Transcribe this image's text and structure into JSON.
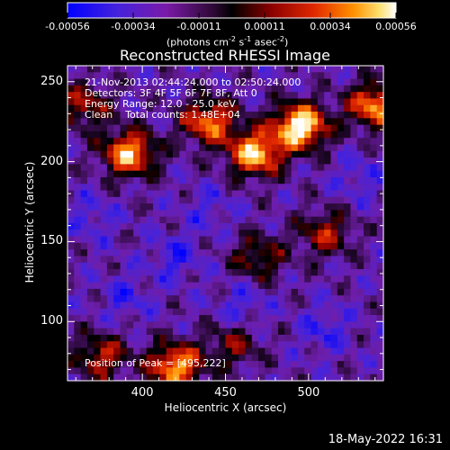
{
  "colorbar": {
    "ticks": [
      "-0.00056",
      "-0.00034",
      "-0.00011",
      "0.00011",
      "0.00034",
      "0.00056"
    ],
    "unit_text": "(photons cm",
    "unit_sup1": "-2",
    "unit_mid": " s",
    "unit_sup2": "-1",
    "unit_end": " asec",
    "unit_sup3": "-2",
    "unit_close": ")"
  },
  "title": "Reconstructed RHESSI Image",
  "info": {
    "line1": "21-Nov-2013 02:44:24.000 to 02:50:24.000",
    "line2": "Detectors: 3F 4F 5F 6F 7F 8F, Att 0",
    "line3": "Energy Range: 12.0 - 25.0 keV",
    "line4": "Clean    Total counts: 1.48E+04",
    "peak": "Position of Peak = [495,222]"
  },
  "footer": "18-May-2022 16:31",
  "chart_data": {
    "type": "heatmap",
    "title": "Reconstructed RHESSI Image",
    "xlabel": "Heliocentric X (arcsec)",
    "ylabel": "Heliocentric Y (arcsec)",
    "xlim": [
      355,
      545
    ],
    "ylim": [
      63,
      260
    ],
    "xticks": [
      400,
      450,
      500
    ],
    "yticks": [
      100,
      150,
      200,
      250
    ],
    "colorscale_range": [
      -0.00056,
      0.00056
    ],
    "colormap": [
      "#0000ff",
      "#6633cc",
      "#7a1aa8",
      "#3a0a4a",
      "#000000",
      "#7a0000",
      "#d21e00",
      "#ff6a00",
      "#ffc040",
      "#ffffff"
    ],
    "peak_position": [
      495,
      222
    ],
    "hot_regions": [
      {
        "x": 495,
        "y": 222,
        "intensity": 1.0
      },
      {
        "x": 468,
        "y": 205,
        "intensity": 0.85
      },
      {
        "x": 440,
        "y": 225,
        "intensity": 0.7
      },
      {
        "x": 392,
        "y": 205,
        "intensity": 0.8
      },
      {
        "x": 540,
        "y": 235,
        "intensity": 0.75
      },
      {
        "x": 420,
        "y": 72,
        "intensity": 0.8
      },
      {
        "x": 375,
        "y": 78,
        "intensity": 0.5
      },
      {
        "x": 510,
        "y": 155,
        "intensity": 0.45
      },
      {
        "x": 470,
        "y": 140,
        "intensity": 0.4
      },
      {
        "x": 365,
        "y": 235,
        "intensity": 0.45
      },
      {
        "x": 455,
        "y": 85,
        "intensity": 0.35
      }
    ],
    "cold_regions": [
      {
        "x": 420,
        "y": 140,
        "intensity": 0.6
      },
      {
        "x": 390,
        "y": 115,
        "intensity": 0.5
      },
      {
        "x": 510,
        "y": 95,
        "intensity": 0.55
      },
      {
        "x": 460,
        "y": 110,
        "intensity": 0.5
      },
      {
        "x": 530,
        "y": 190,
        "intensity": 0.45
      },
      {
        "x": 370,
        "y": 165,
        "intensity": 0.45
      },
      {
        "x": 440,
        "y": 170,
        "intensity": 0.4
      }
    ]
  }
}
